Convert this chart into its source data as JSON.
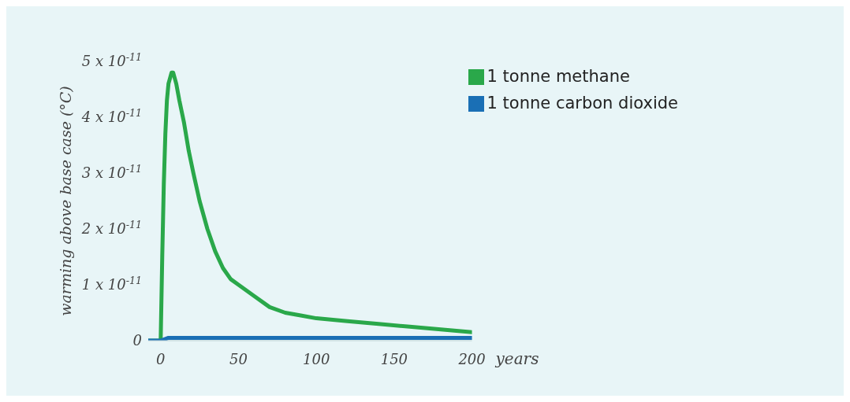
{
  "chart_data": {
    "type": "line",
    "ylabel": "warming above base case (°C)",
    "xlabel": "years",
    "xlim": [
      -8,
      200
    ],
    "xticks": [
      0,
      50,
      100,
      150,
      200
    ],
    "ylim": [
      0,
      5e-11
    ],
    "yticks": [
      {
        "value": 0,
        "label": "0"
      },
      {
        "value": 1e-11,
        "label": "1 x 10$^{-11}$"
      },
      {
        "value": 2e-11,
        "label": "2 x 10$^{-11}$"
      },
      {
        "value": 3e-11,
        "label": "3 x 10$^{-11}$"
      },
      {
        "value": 4e-11,
        "label": "4 x 10$^{-11}$"
      },
      {
        "value": 5e-11,
        "label": "5 x 10$^{-11}$"
      }
    ],
    "grid": false,
    "legend": "top right",
    "marker": "none",
    "line_style": "solid",
    "series": [
      {
        "name": "1 tonne methane",
        "color": "#2aa84a",
        "x": [
          -8,
          0,
          1,
          2,
          3,
          4,
          5,
          6,
          7,
          8,
          10,
          12,
          15,
          18,
          21,
          25,
          30,
          35,
          40,
          45,
          50,
          60,
          70,
          80,
          90,
          100,
          120,
          140,
          160,
          180,
          200
        ],
        "values": [
          0,
          0,
          1.5e-11,
          2.8e-11,
          3.7e-11,
          4.3e-11,
          4.6e-11,
          4.7e-11,
          4.8e-11,
          4.8e-11,
          4.6e-11,
          4.3e-11,
          3.9e-11,
          3.4e-11,
          3e-11,
          2.5e-11,
          2e-11,
          1.6e-11,
          1.3e-11,
          1.1e-11,
          1e-11,
          8e-12,
          6e-12,
          5e-12,
          4.5e-12,
          4e-12,
          3.5e-12,
          3e-12,
          2.5e-12,
          2e-12,
          1.5e-12
        ]
      },
      {
        "name": "1 tonne carbon dioxide",
        "color": "#1a6fb5",
        "x": [
          -8,
          0,
          5,
          10,
          20,
          50,
          100,
          150,
          200
        ],
        "values": [
          0,
          0,
          5e-13,
          5e-13,
          5e-13,
          5e-13,
          5e-13,
          5e-13,
          5e-13
        ]
      }
    ]
  }
}
